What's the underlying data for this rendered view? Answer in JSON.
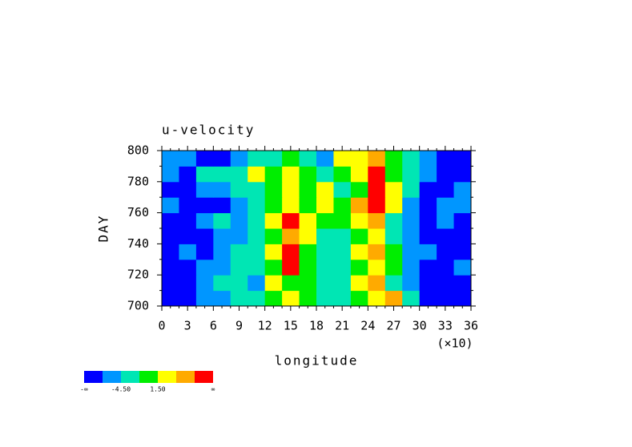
{
  "chart_data": {
    "type": "contour",
    "title": "u-velocity",
    "xlabel": "longitude",
    "ylabel": "DAY",
    "x_multiplier": "(×10)",
    "xlim": [
      0,
      360
    ],
    "ylim": [
      700,
      800
    ],
    "xticks": [
      0,
      {
        "value": 30,
        "label": "3"
      },
      {
        "value": 60,
        "label": "6"
      },
      {
        "value": 90,
        "label": "9"
      },
      {
        "value": 120,
        "label": "12"
      },
      {
        "value": 150,
        "label": "15"
      },
      {
        "value": 180,
        "label": "18"
      },
      {
        "value": 210,
        "label": "21"
      },
      {
        "value": 240,
        "label": "24"
      },
      {
        "value": 270,
        "label": "27"
      },
      {
        "value": 300,
        "label": "30"
      },
      {
        "value": 330,
        "label": "33"
      },
      {
        "value": 360,
        "label": "36"
      }
    ],
    "xminorticks": [
      10,
      20,
      40,
      50,
      70,
      80,
      100,
      110,
      130,
      140,
      160,
      170,
      190,
      200,
      220,
      230,
      250,
      260,
      280,
      290,
      310,
      320,
      340,
      350
    ],
    "yticks": [
      700,
      720,
      740,
      760,
      780,
      800
    ],
    "yminorticks": [
      710,
      730,
      750,
      770,
      790
    ],
    "x": [
      10,
      30,
      50,
      70,
      90,
      110,
      130,
      150,
      170,
      190,
      210,
      230,
      250,
      270,
      290,
      310,
      330,
      350
    ],
    "y": [
      705,
      715,
      725,
      735,
      745,
      755,
      765,
      775,
      785,
      795
    ],
    "z": [
      [
        -9,
        -8,
        -6,
        -5,
        -3,
        -4,
        -1,
        2,
        1,
        -2,
        -3,
        -1,
        3,
        5,
        -4,
        -8,
        -9,
        -8
      ],
      [
        -8,
        -9,
        -7,
        -3,
        -2,
        -5,
        3,
        -1,
        0,
        -3,
        -2,
        2,
        6,
        -2,
        -6,
        -9,
        -8,
        -9
      ],
      [
        -9,
        -8,
        -5,
        -6,
        -3,
        -2,
        1,
        8,
        -1,
        -4,
        -3,
        -1,
        4,
        0,
        -5,
        -8,
        -9,
        -7
      ],
      [
        -8,
        -7,
        -9,
        -5,
        -4,
        -2,
        2,
        9,
        0,
        -3,
        -2,
        3,
        5,
        -1,
        -6,
        -7,
        -8,
        -8
      ],
      [
        -9,
        -8,
        -8,
        -6,
        -5,
        -3,
        1,
        6,
        2,
        -2,
        -3,
        -1,
        3,
        -3,
        -7,
        -9,
        -9,
        -8
      ],
      [
        -8,
        -9,
        -7,
        -4,
        -6,
        -2,
        3,
        9,
        4,
        1,
        -1,
        2,
        6,
        -2,
        -5,
        -8,
        -7,
        -9
      ],
      [
        -7,
        -8,
        -9,
        -8,
        -5,
        -4,
        0,
        3,
        1,
        2,
        0,
        5,
        9,
        2,
        -6,
        -9,
        -6,
        -7
      ],
      [
        -8,
        -9,
        -7,
        -5,
        -3,
        -2,
        1,
        2,
        -1,
        2,
        -2,
        1,
        8,
        3,
        -4,
        -8,
        -9,
        -6
      ],
      [
        -6,
        -8,
        -4,
        -3,
        -2,
        4,
        -1,
        3,
        0,
        -2,
        1,
        3,
        9,
        0,
        -3,
        -6,
        -8,
        -9
      ],
      [
        -7,
        -6,
        -9,
        -8,
        -6,
        -4,
        -3,
        -1,
        -2,
        -5,
        2,
        4,
        6,
        -1,
        -4,
        -7,
        -8,
        -9
      ]
    ],
    "levels": [
      -7.5,
      -4.5,
      -1.5,
      1.5,
      4.5,
      7.5
    ],
    "colors": [
      "#0000ff",
      "#0096ff",
      "#00e6b4",
      "#00ee00",
      "#ffff00",
      "#ffaa00",
      "#ff0000"
    ],
    "colorbar_labels": [
      {
        "value": null,
        "label": "-∞"
      },
      {
        "value": -4.5,
        "label": "-4.50"
      },
      {
        "value": 1.5,
        "label": "1.50"
      },
      {
        "value": null,
        "label": "∞"
      }
    ]
  }
}
